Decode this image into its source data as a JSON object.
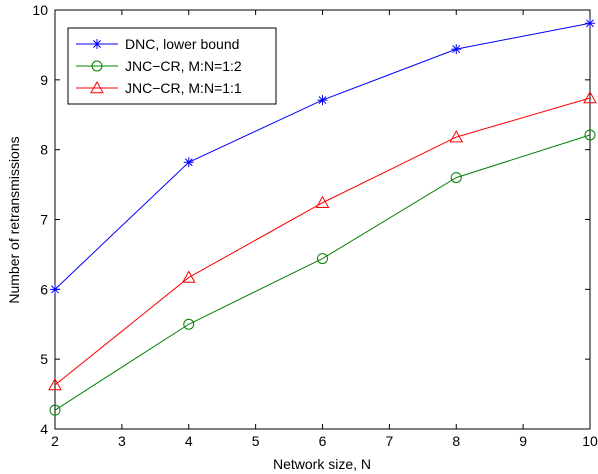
{
  "chart_data": {
    "type": "line",
    "xlabel": "Network size, N",
    "ylabel": "Number of retransmissions",
    "xlim": [
      2,
      10
    ],
    "ylim": [
      4,
      10
    ],
    "xticks": [
      "2",
      "3",
      "4",
      "5",
      "6",
      "7",
      "8",
      "9",
      "10"
    ],
    "yticks": [
      "4",
      "5",
      "6",
      "7",
      "8",
      "9",
      "10"
    ],
    "legend_position": "top-left",
    "grid": false,
    "series": [
      {
        "name": "DNC, lower bound",
        "marker": "star",
        "color": "#0000ff",
        "x": [
          2,
          4,
          6,
          8,
          10
        ],
        "y": [
          6.0,
          7.82,
          8.71,
          9.44,
          9.81
        ]
      },
      {
        "name": "JNC−CR, M:N=1:2",
        "marker": "circle",
        "color": "#008000",
        "x": [
          2,
          4,
          6,
          8,
          10
        ],
        "y": [
          4.27,
          5.5,
          6.44,
          7.6,
          8.21
        ]
      },
      {
        "name": "JNC−CR, M:N=1:1",
        "marker": "triangle",
        "color": "#ff0000",
        "x": [
          2,
          4,
          6,
          8,
          10
        ],
        "y": [
          4.63,
          6.17,
          7.24,
          8.18,
          8.74
        ]
      }
    ]
  }
}
